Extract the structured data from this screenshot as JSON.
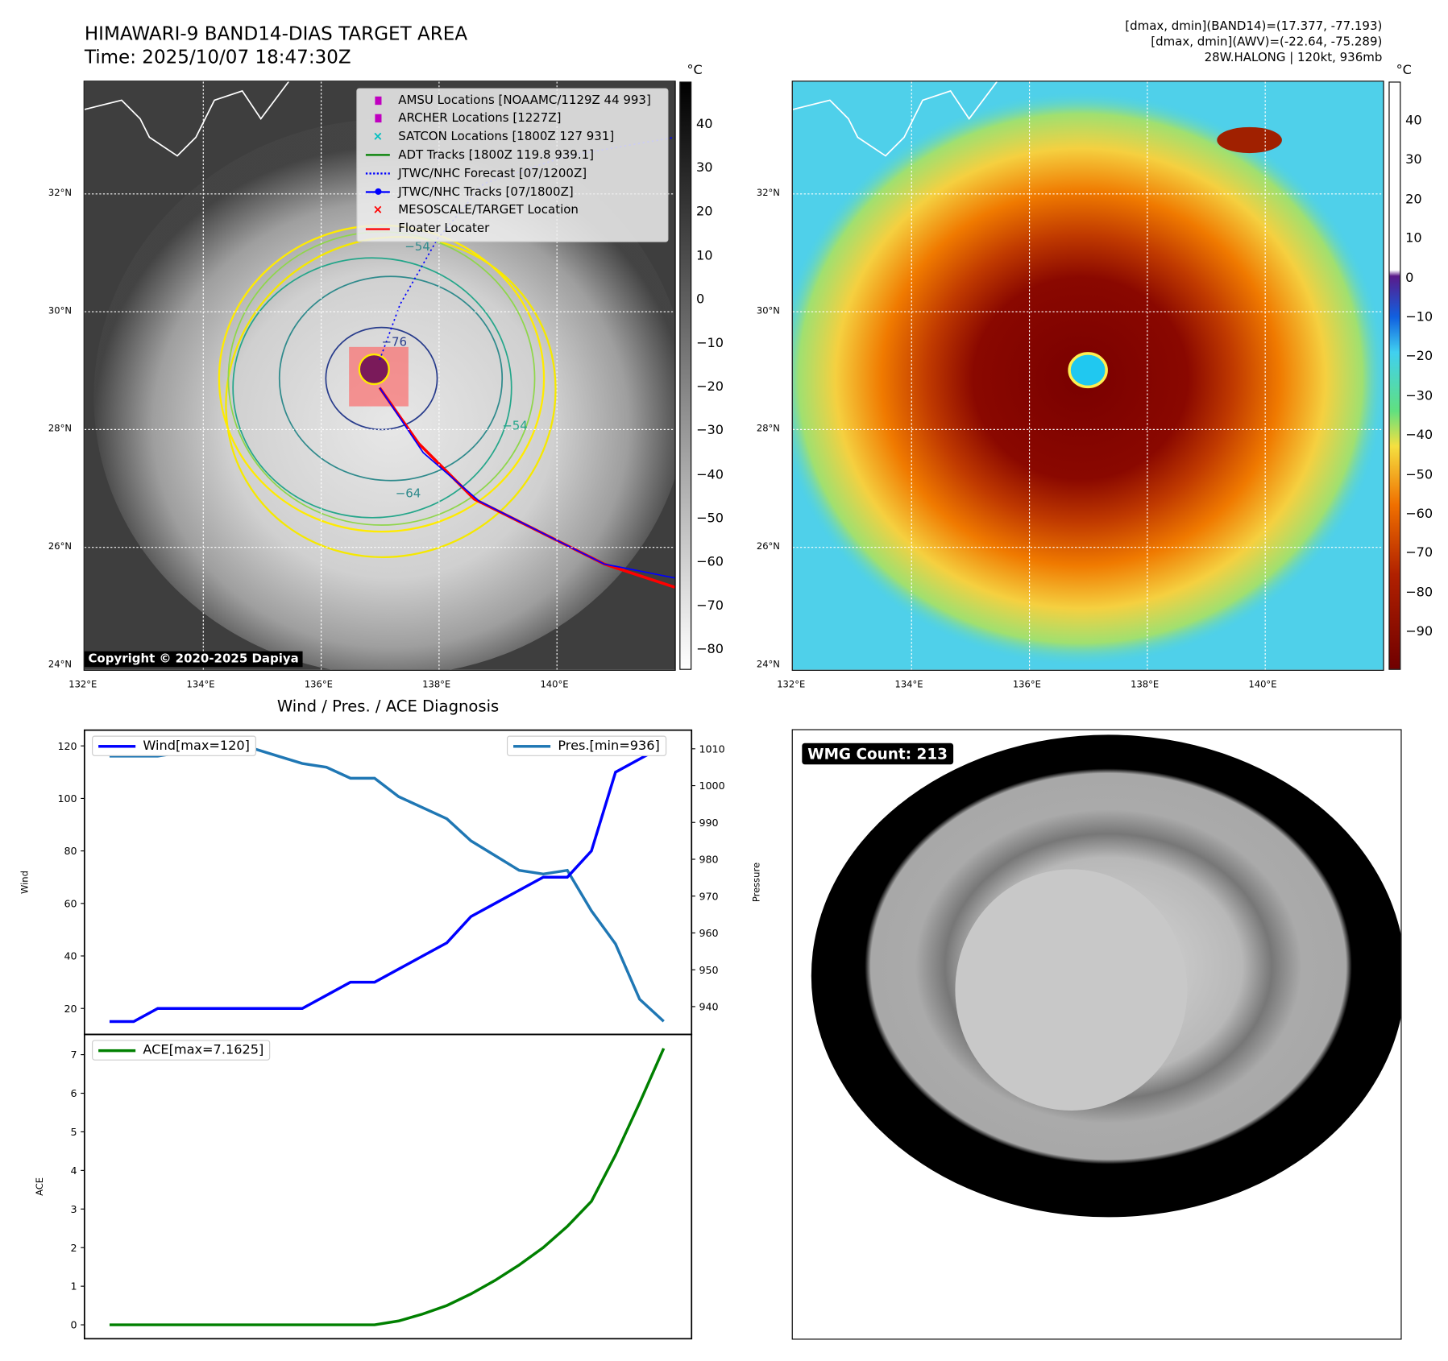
{
  "header": {
    "title": "HIMAWARI-9 BAND14-DIAS TARGET AREA",
    "time": "Time: 2025/10/07 18:47:30Z",
    "info": [
      "[dmax, dmin](BAND14)=(17.377, -77.193)",
      "[dmax, dmin](AWV)=(-22.64, -75.289)",
      "28W.HALONG | 120kt, 936mb"
    ]
  },
  "map_left": {
    "unit": "°C",
    "lat_ticks": [
      "32°N",
      "30°N",
      "28°N",
      "26°N",
      "24°N"
    ],
    "lon_ticks": [
      "132°E",
      "134°E",
      "136°E",
      "138°E",
      "140°E"
    ],
    "colorbar_ticks": [
      "40",
      "30",
      "20",
      "10",
      "0",
      "−10",
      "−20",
      "−30",
      "−40",
      "−50",
      "−60",
      "−70",
      "−80"
    ],
    "contour_labels": [
      "−54",
      "−76",
      "−64",
      "−54",
      "−54"
    ],
    "legend": [
      {
        "label": "AMSU Locations [NOAAMC/1129Z 44 993]",
        "icon": "square-marker",
        "color": "#c000c0"
      },
      {
        "label": "ARCHER Locations [1227Z]",
        "icon": "square-marker",
        "color": "#c000c0"
      },
      {
        "label": "SATCON Locations [1800Z 127 931]",
        "icon": "x-marker",
        "color": "#00bfbf"
      },
      {
        "label": "ADT Tracks [1800Z 119.8 939.1]",
        "icon": "line",
        "color": "#008000"
      },
      {
        "label": "JTWC/NHC Forecast [07/1200Z]",
        "icon": "dotted-line",
        "color": "#0000ff"
      },
      {
        "label": "JTWC/NHC Tracks [07/1800Z]",
        "icon": "line-dot",
        "color": "#0000ff"
      },
      {
        "label": "MESOSCALE/TARGET Location",
        "icon": "x-marker",
        "color": "#ff0000"
      },
      {
        "label": "Floater Locater",
        "icon": "line",
        "color": "#ff0000"
      }
    ],
    "copyright": "Copyright © 2020-2025 Dapiya"
  },
  "map_right": {
    "unit": "°C",
    "lat_ticks": [
      "32°N",
      "30°N",
      "28°N",
      "26°N",
      "24°N"
    ],
    "lon_ticks": [
      "132°E",
      "134°E",
      "136°E",
      "138°E",
      "140°E"
    ],
    "colorbar_ticks": [
      "40",
      "30",
      "20",
      "10",
      "0",
      "−10",
      "−20",
      "−30",
      "−40",
      "−50",
      "−60",
      "−70",
      "−80",
      "−90"
    ]
  },
  "chart_data": {
    "type": "line",
    "title": "Wind / Pres. / ACE Diagnosis",
    "top": {
      "ylabel": "Wind",
      "y2label": "Pressure",
      "ylim": [
        10,
        125
      ],
      "y2lim": [
        933,
        1013
      ],
      "yticks": [
        "120",
        "100",
        "80",
        "60",
        "40",
        "20"
      ],
      "y2ticks": [
        "1010",
        "1000",
        "990",
        "980",
        "970",
        "960",
        "950",
        "940"
      ],
      "series": [
        {
          "name": "Wind[max=120]",
          "color": "#0000ff",
          "axis": "left",
          "values": [
            15,
            15,
            20,
            20,
            20,
            20,
            20,
            20,
            20,
            25,
            30,
            30,
            35,
            40,
            45,
            55,
            60,
            65,
            70,
            70,
            80,
            110,
            115,
            120
          ]
        },
        {
          "name": "Pres.[min=936]",
          "color": "#1f77b4",
          "axis": "right",
          "values": [
            1008,
            1008,
            1008,
            1009,
            1010,
            1010,
            1010,
            1008,
            1006,
            1005,
            1002,
            1002,
            997,
            994,
            991,
            985,
            981,
            977,
            976,
            977,
            966,
            957,
            942,
            936
          ]
        }
      ]
    },
    "bottom": {
      "ylabel": "ACE",
      "ylim": [
        -0.3,
        7.5
      ],
      "yticks": [
        "7",
        "6",
        "5",
        "4",
        "3",
        "2",
        "1",
        "0"
      ],
      "series": [
        {
          "name": "ACE[max=7.1625]",
          "color": "#008000",
          "values": [
            0,
            0,
            0,
            0,
            0,
            0,
            0,
            0,
            0,
            0,
            0,
            0,
            0.1,
            0.28,
            0.5,
            0.8,
            1.15,
            1.55,
            2.0,
            2.55,
            3.2,
            4.4,
            5.75,
            7.1625
          ]
        }
      ]
    }
  },
  "wmg": {
    "label": "WMG Count: 213"
  }
}
